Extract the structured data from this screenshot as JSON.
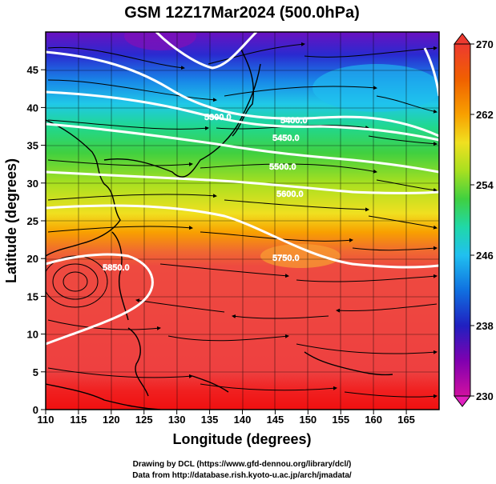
{
  "title": "GSM 12Z17Mar2024 (500.0hPa)",
  "x_axis": {
    "label": "Longitude (degrees)",
    "min": 110,
    "max": 170,
    "ticks": [
      "110",
      "115",
      "120",
      "125",
      "130",
      "135",
      "140",
      "145",
      "150",
      "155",
      "160",
      "165"
    ],
    "tick_values": [
      110,
      115,
      120,
      125,
      130,
      135,
      140,
      145,
      150,
      155,
      160,
      165
    ]
  },
  "y_axis": {
    "label": "Latitude  (degrees)",
    "min": 0,
    "max": 50,
    "ticks": [
      "0",
      "5",
      "10",
      "15",
      "20",
      "25",
      "30",
      "35",
      "40",
      "45"
    ],
    "tick_values": [
      0,
      5,
      10,
      15,
      20,
      25,
      30,
      35,
      40,
      45
    ]
  },
  "colorbar": {
    "min": 230,
    "max": 270,
    "labels": [
      "270",
      "262",
      "254",
      "246",
      "238",
      "230"
    ],
    "label_values": [
      270,
      262,
      254,
      246,
      238,
      230
    ],
    "colors": [
      "#c71585",
      "#8000b0",
      "#2020c0",
      "#1070e0",
      "#20c0f0",
      "#20d8a8",
      "#40d040",
      "#a8e020",
      "#f0e020",
      "#f8a000",
      "#f06000",
      "#ee3a30"
    ]
  },
  "contour_labels": [
    "5300.0",
    "5400.0",
    "5450.0",
    "5500.0",
    "5600.0",
    "5750.0",
    "5850.0"
  ],
  "credits": {
    "line1": "Drawing by DCL (https://www.gfd-dennou.org/library/dcl/)",
    "line2": "Data from http://database.rish.kyoto-u.ac.jp/arch/jmadata/"
  }
}
